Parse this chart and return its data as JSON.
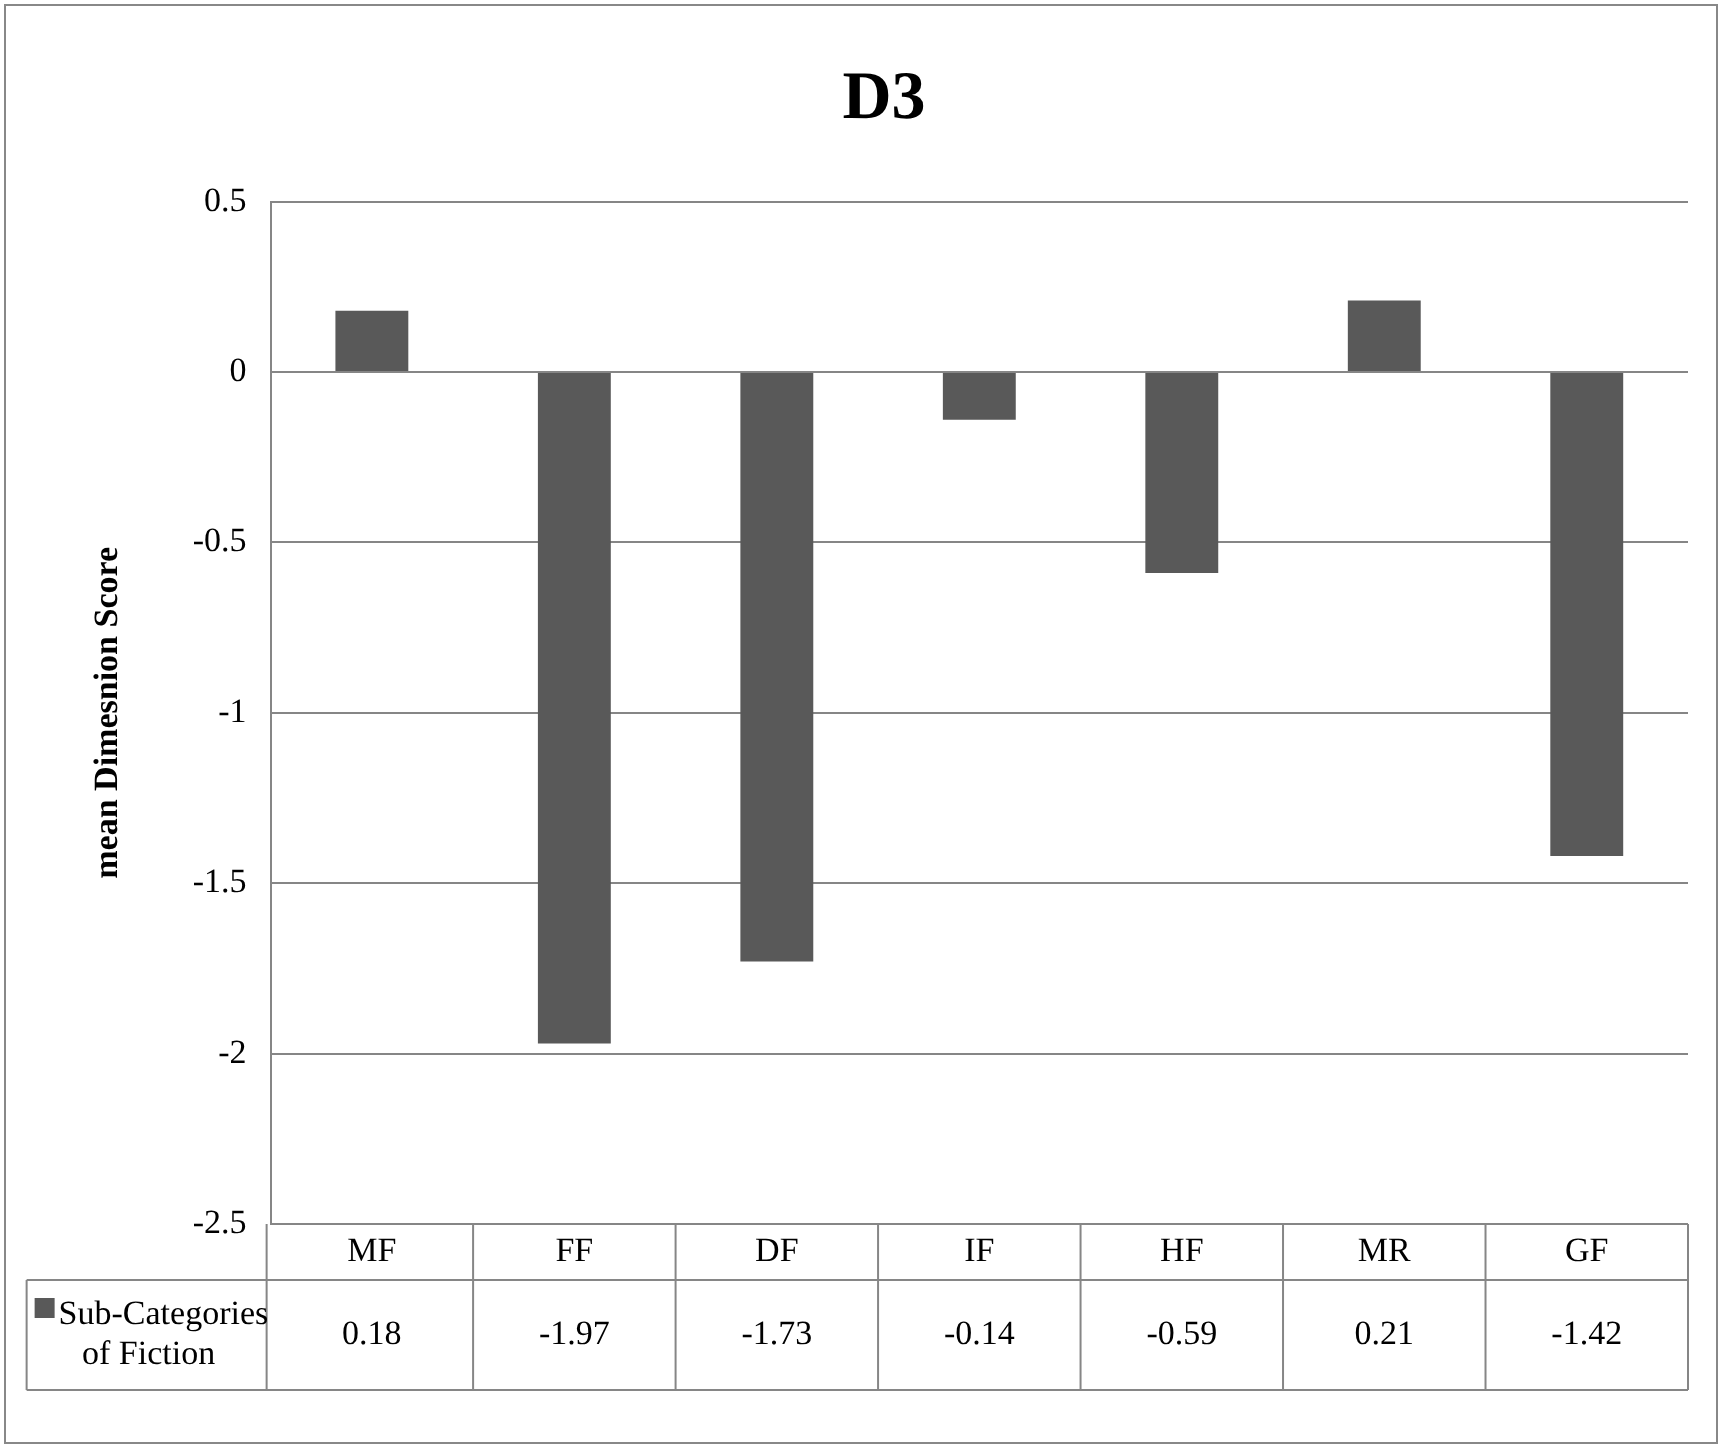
{
  "chart_data": {
    "type": "bar",
    "title": "D3",
    "ylabel": "mean Dimesnion Score",
    "categories": [
      "MF",
      "FF",
      "DF",
      "IF",
      "HF",
      "MR",
      "GF"
    ],
    "series": [
      {
        "name": "Sub-Categories of Fiction",
        "color": "#595959",
        "values": [
          0.18,
          -1.97,
          -1.73,
          -0.14,
          -0.59,
          0.21,
          -1.42
        ]
      }
    ],
    "ylim": [
      -2.5,
      0.5
    ],
    "yticks": [
      0.5,
      0,
      -0.5,
      -1,
      -1.5,
      -2,
      -2.5
    ],
    "grid": "y",
    "legend": "bottom",
    "data_labels": true
  }
}
